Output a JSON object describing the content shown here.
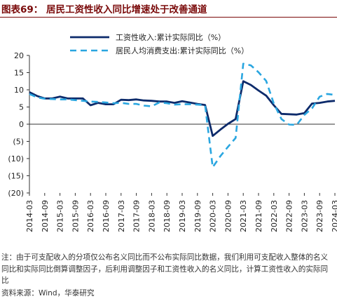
{
  "header": {
    "title": "图表69：  居民工资性收入同比增速处于改善通道"
  },
  "footer": {
    "note": "注：由于可支配收入的分项仅公布名义同比而不公布实际同比数据，我们利用可支配收入整体的名义同比和实际同比倒算调整因子，后利用调整因子和工资性收入的名义同比，计算工资性收入的实际同比",
    "source": "资料来源：Wind，华泰研究"
  },
  "chart_data": {
    "type": "line",
    "x": [
      "2014-03",
      "2014-06",
      "2014-09",
      "2014-12",
      "2015-03",
      "2015-06",
      "2015-09",
      "2015-12",
      "2016-03",
      "2016-06",
      "2016-09",
      "2016-12",
      "2017-03",
      "2017-06",
      "2017-09",
      "2017-12",
      "2018-03",
      "2018-06",
      "2018-09",
      "2018-12",
      "2019-03",
      "2019-06",
      "2019-09",
      "2019-12",
      "2020-03",
      "2020-06",
      "2020-09",
      "2020-12",
      "2021-03",
      "2021-06",
      "2021-09",
      "2021-12",
      "2022-03",
      "2022-06",
      "2022-09",
      "2022-12",
      "2023-03",
      "2023-06",
      "2023-09",
      "2023-12",
      "2024-03"
    ],
    "x_tick_labels": [
      "2014-03",
      "2014-09",
      "2015-03",
      "2015-09",
      "2016-03",
      "2016-09",
      "2017-03",
      "2017-09",
      "2018-03",
      "2018-09",
      "2019-03",
      "2019-09",
      "2020-03",
      "2020-09",
      "2021-03",
      "2021-09",
      "2022-03",
      "2022-09",
      "2023-03",
      "2023-09",
      "2024-03"
    ],
    "y_tick_labels": [
      "20",
      "15",
      "10",
      "5",
      "0",
      "(5)",
      "(10)",
      "(15)",
      "(20)"
    ],
    "ylim": [
      -20,
      20
    ],
    "series": [
      {
        "name": "工资性收入:累计实际同比（%）",
        "style": "solid",
        "color": "#0d2b6b",
        "values": [
          9.3,
          8.2,
          7.5,
          7.5,
          8.0,
          7.5,
          7.5,
          7.5,
          5.5,
          6.2,
          5.8,
          5.8,
          7.1,
          7.0,
          7.2,
          6.9,
          6.8,
          6.6,
          6.6,
          6.2,
          6.7,
          6.3,
          5.9,
          5.6,
          -3.4,
          -1.6,
          0.1,
          1.5,
          12.5,
          11.4,
          9.8,
          8.3,
          5.5,
          3.0,
          2.9,
          2.8,
          3.2,
          6.0,
          6.2,
          6.6,
          6.8
        ]
      },
      {
        "name": "居民人均消费支出:累计实际同比（%）",
        "style": "dashed",
        "color": "#2aa6e0",
        "values": [
          8.8,
          7.8,
          7.4,
          7.3,
          7.2,
          7.2,
          7.0,
          6.8,
          6.6,
          6.5,
          6.3,
          6.1,
          6.2,
          5.9,
          5.9,
          5.4,
          5.2,
          6.3,
          6.1,
          5.7,
          5.8,
          5.8,
          5.7,
          5.5,
          -12.5,
          -9.3,
          -6.6,
          -4.0,
          17.6,
          17.1,
          15.1,
          12.6,
          6.0,
          1.5,
          -0.1,
          -0.2,
          2.7,
          4.6,
          8.0,
          8.8,
          8.5
        ]
      }
    ],
    "title": "",
    "xlabel": "",
    "ylabel": "",
    "grid": false,
    "legend_position": "top-center"
  }
}
